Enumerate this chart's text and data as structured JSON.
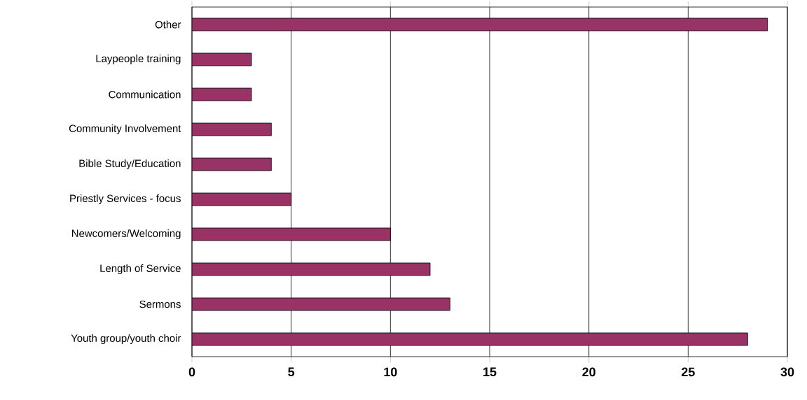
{
  "chart_data": {
    "type": "bar",
    "orientation": "horizontal",
    "categories": [
      "Other",
      "Laypeople training",
      "Communication",
      "Community Involvement",
      "Bible Study/Education",
      "Priestly Services - focus",
      "Newcomers/Welcoming",
      "Length of Service",
      "Sermons",
      "Youth group/youth choir"
    ],
    "values": [
      29,
      3,
      3,
      4,
      4,
      5,
      10,
      12,
      13,
      28
    ],
    "color": "#993366",
    "xlim": [
      0,
      30
    ],
    "xticks": [
      0,
      5,
      10,
      15,
      20,
      25,
      30
    ],
    "grid": "x"
  }
}
